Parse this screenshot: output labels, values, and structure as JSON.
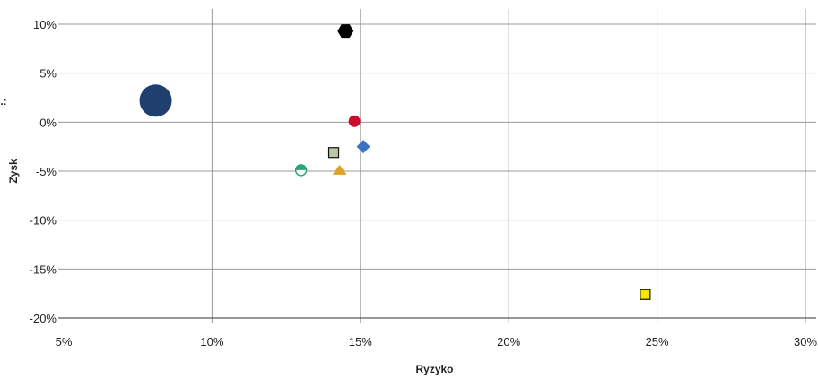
{
  "chart_data": {
    "type": "scatter",
    "xlabel": "Ryzyko",
    "ylabel": "Zysk",
    "xlim": [
      5,
      30
    ],
    "ylim": [
      -20,
      10
    ],
    "x_ticks": [
      5,
      10,
      15,
      20,
      25,
      30
    ],
    "y_ticks": [
      10,
      5,
      0,
      -5,
      -10,
      -15,
      -20
    ],
    "x_tick_labels": [
      "5%",
      "10%",
      "15%",
      "20%",
      "25%",
      "30%"
    ],
    "y_tick_labels": [
      "10%",
      "5%",
      "0%",
      "-5%",
      "-10%",
      "-15%",
      "-20%"
    ],
    "grid": true,
    "legend_fragment": "..:",
    "points": [
      {
        "x": 8.1,
        "y": 2.2,
        "marker": "circle-large",
        "color": "#1f3f6e"
      },
      {
        "x": 14.5,
        "y": 9.3,
        "marker": "hexagon",
        "color": "#000000"
      },
      {
        "x": 14.8,
        "y": 0.1,
        "marker": "circle",
        "color": "#c8102e"
      },
      {
        "x": 15.1,
        "y": -2.5,
        "marker": "diamond",
        "color": "#3a73c4"
      },
      {
        "x": 14.1,
        "y": -3.1,
        "marker": "square",
        "color": "#b8c9a4"
      },
      {
        "x": 14.3,
        "y": -4.9,
        "marker": "triangle",
        "color": "#e0a024"
      },
      {
        "x": 13.0,
        "y": -4.9,
        "marker": "half-circle",
        "color": "#2aa57a"
      },
      {
        "x": 24.6,
        "y": -17.6,
        "marker": "square",
        "color": "#f5e800"
      }
    ]
  }
}
